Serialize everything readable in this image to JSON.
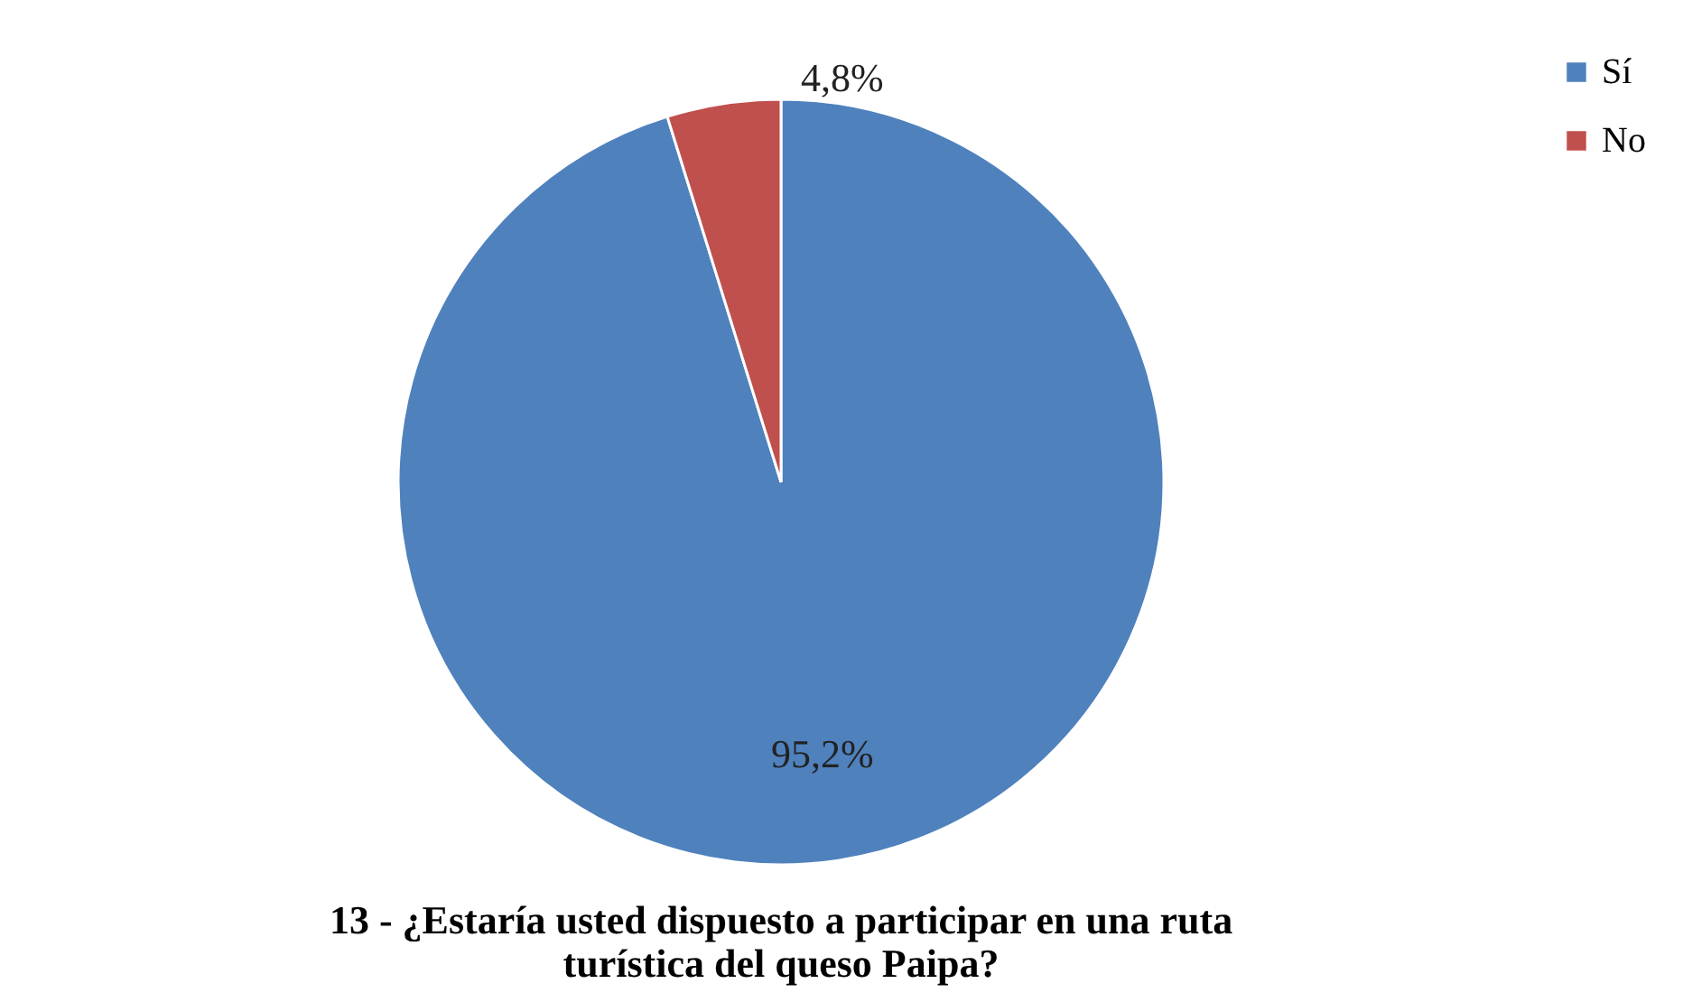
{
  "chart_data": {
    "type": "pie",
    "title": "13 - ¿Estaría usted dispuesto a participar en una ruta turística del queso Paipa?",
    "categories": [
      "Sí",
      "No"
    ],
    "values": [
      95.2,
      4.8
    ],
    "colors": [
      "#4f81bd",
      "#c0504d"
    ],
    "value_labels": [
      "95,2%",
      "4,8%"
    ],
    "legend": "right"
  }
}
